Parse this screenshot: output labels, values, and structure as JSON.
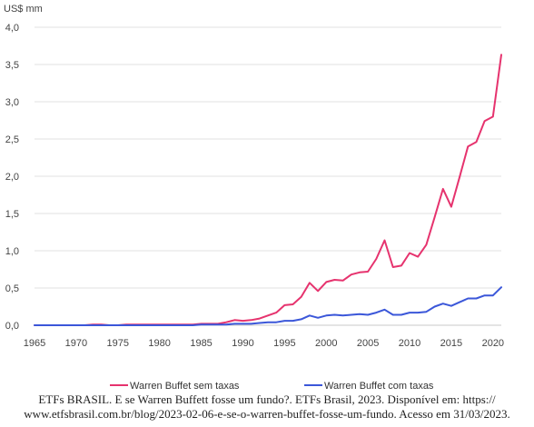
{
  "chart_data": {
    "type": "line",
    "ylabel": "US$ mm",
    "ylim": [
      0,
      4.0
    ],
    "yticks": [
      "0,0",
      "0,5",
      "1,0",
      "1,5",
      "2,0",
      "2,5",
      "3,0",
      "3,5",
      "4,0"
    ],
    "xlim": [
      1965,
      2021
    ],
    "xticks": [
      "1965",
      "1970",
      "1975",
      "1980",
      "1985",
      "1990",
      "1995",
      "2000",
      "2005",
      "2010",
      "2015",
      "2020"
    ],
    "grid": true,
    "legend_position": "bottom",
    "series": [
      {
        "name": "Warren Buffet sem taxas",
        "color": "#e6336e",
        "x": [
          1965,
          1966,
          1967,
          1968,
          1969,
          1970,
          1971,
          1972,
          1973,
          1974,
          1975,
          1976,
          1977,
          1978,
          1979,
          1980,
          1981,
          1982,
          1983,
          1984,
          1985,
          1986,
          1987,
          1988,
          1989,
          1990,
          1991,
          1992,
          1993,
          1994,
          1995,
          1996,
          1997,
          1998,
          1999,
          2000,
          2001,
          2002,
          2003,
          2004,
          2005,
          2006,
          2007,
          2008,
          2009,
          2010,
          2011,
          2012,
          2013,
          2014,
          2015,
          2016,
          2017,
          2018,
          2019,
          2020,
          2021
        ],
        "values": [
          0,
          0,
          0,
          0,
          0,
          0,
          0,
          0.01,
          0.01,
          0,
          0,
          0.01,
          0.01,
          0.01,
          0.01,
          0.01,
          0.01,
          0.01,
          0.01,
          0.01,
          0.02,
          0.02,
          0.02,
          0.04,
          0.07,
          0.06,
          0.07,
          0.09,
          0.13,
          0.17,
          0.27,
          0.28,
          0.38,
          0.57,
          0.46,
          0.58,
          0.61,
          0.6,
          0.68,
          0.71,
          0.72,
          0.89,
          1.14,
          0.78,
          0.8,
          0.97,
          0.92,
          1.08,
          1.45,
          1.83,
          1.59,
          1.99,
          2.4,
          2.46,
          2.74,
          2.8,
          3.63
        ]
      },
      {
        "name": "Warren Buffet com taxas",
        "color": "#3b57d9",
        "x": [
          1965,
          1966,
          1967,
          1968,
          1969,
          1970,
          1971,
          1972,
          1973,
          1974,
          1975,
          1976,
          1977,
          1978,
          1979,
          1980,
          1981,
          1982,
          1983,
          1984,
          1985,
          1986,
          1987,
          1988,
          1989,
          1990,
          1991,
          1992,
          1993,
          1994,
          1995,
          1996,
          1997,
          1998,
          1999,
          2000,
          2001,
          2002,
          2003,
          2004,
          2005,
          2006,
          2007,
          2008,
          2009,
          2010,
          2011,
          2012,
          2013,
          2014,
          2015,
          2016,
          2017,
          2018,
          2019,
          2020,
          2021
        ],
        "values": [
          0,
          0,
          0,
          0,
          0,
          0,
          0,
          0,
          0,
          0,
          0,
          0,
          0,
          0,
          0,
          0,
          0,
          0,
          0,
          0,
          0.01,
          0.01,
          0.01,
          0.01,
          0.02,
          0.02,
          0.02,
          0.03,
          0.04,
          0.04,
          0.06,
          0.06,
          0.08,
          0.13,
          0.1,
          0.13,
          0.14,
          0.13,
          0.14,
          0.15,
          0.14,
          0.17,
          0.21,
          0.14,
          0.14,
          0.17,
          0.17,
          0.18,
          0.25,
          0.29,
          0.26,
          0.31,
          0.36,
          0.36,
          0.4,
          0.4,
          0.51
        ]
      }
    ]
  },
  "source": {
    "line1": "ETFs BRASIL. E se Warren Buffett fosse um fundo?. ETFs Brasil, 2023. Disponível em: https://",
    "line2": "www.etfsbrasil.com.br/blog/2023-02-06-e-se-o-warren-buffet-fosse-um-fundo. Acesso em 31/03/2023."
  }
}
